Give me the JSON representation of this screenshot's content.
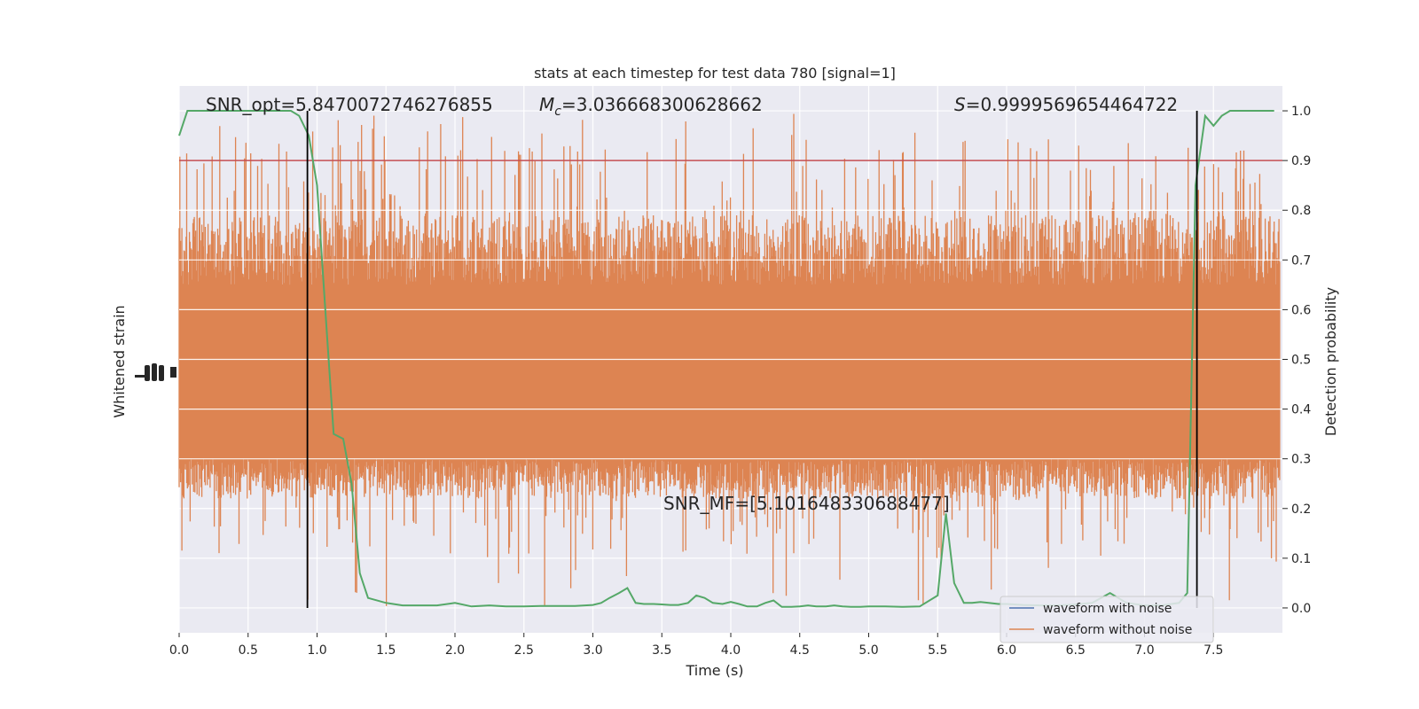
{
  "chart_data": {
    "type": "line",
    "title": "stats at each timestep for test data 780 [signal=1]",
    "xlabel": "Time (s)",
    "ylabel_left": "Whitened strain",
    "ylabel_right": "Detection probability",
    "xlim": [
      0,
      8
    ],
    "ylim_right": [
      -0.05,
      1.05
    ],
    "x_ticks": [
      0.0,
      0.5,
      1.0,
      1.5,
      2.0,
      2.5,
      3.0,
      3.5,
      4.0,
      4.5,
      5.0,
      5.5,
      6.0,
      6.5,
      7.0,
      7.5
    ],
    "x_tick_labels": [
      "0.0",
      "0.5",
      "1.0",
      "1.5",
      "2.0",
      "2.5",
      "3.0",
      "3.5",
      "4.0",
      "4.5",
      "5.0",
      "5.5",
      "6.0",
      "6.5",
      "7.0",
      "7.5"
    ],
    "y_right_ticks": [
      0.0,
      0.1,
      0.2,
      0.3,
      0.4,
      0.5,
      0.6,
      0.7,
      0.8,
      0.9,
      1.0
    ],
    "y_right_tick_labels": [
      "0.0",
      "0.1",
      "0.2",
      "0.3",
      "0.4",
      "0.5",
      "0.6",
      "0.7",
      "0.8",
      "0.9",
      "1.0"
    ],
    "grid": true,
    "legend_placement": "lower-right",
    "annotations": {
      "snr_opt": "SNR_opt=5.8470072746276855",
      "mc_prefix": "M",
      "mc_sub": "c",
      "mc_value": "=3.036668300628662",
      "s_prefix": "S",
      "s_value": "=0.9999569654464722",
      "snr_mf": "SNR_MF=[5.101648330688477]"
    },
    "threshold": 0.9,
    "vertical_lines_x": [
      0.93,
      7.38
    ],
    "strain_band": {
      "name": "waveform without noise",
      "core_low": 0.3,
      "core_high": 0.65,
      "spike_low_min": 0.0,
      "spike_high_max": 1.0
    },
    "series": [
      {
        "name": "waveform with noise",
        "color": "#4c72b0"
      },
      {
        "name": "waveform without noise",
        "color": "#dd8452"
      },
      {
        "color": "#55a868",
        "x": [
          0.0,
          0.06,
          0.12,
          0.19,
          0.25,
          0.31,
          0.37,
          0.44,
          0.5,
          0.56,
          0.62,
          0.69,
          0.75,
          0.81,
          0.87,
          0.94,
          1.0,
          1.06,
          1.12,
          1.19,
          1.25,
          1.31,
          1.37,
          1.5,
          1.62,
          1.75,
          1.87,
          2.0,
          2.12,
          2.25,
          2.37,
          2.5,
          2.62,
          2.75,
          2.87,
          3.0,
          3.06,
          3.12,
          3.19,
          3.25,
          3.31,
          3.37,
          3.44,
          3.5,
          3.56,
          3.62,
          3.69,
          3.75,
          3.81,
          3.87,
          3.94,
          4.0,
          4.06,
          4.12,
          4.19,
          4.25,
          4.31,
          4.37,
          4.44,
          4.5,
          4.56,
          4.62,
          4.69,
          4.75,
          4.81,
          4.87,
          4.94,
          5.0,
          5.12,
          5.25,
          5.37,
          5.5,
          5.56,
          5.62,
          5.69,
          5.75,
          5.81,
          5.87,
          5.94,
          6.0,
          6.12,
          6.25,
          6.37,
          6.5,
          6.62,
          6.75,
          6.87,
          7.0,
          7.12,
          7.25,
          7.31,
          7.37,
          7.44,
          7.5,
          7.56,
          7.62,
          7.69,
          7.75,
          7.87,
          7.94
        ],
        "y": [
          0.95,
          1.0,
          1.0,
          1.0,
          1.0,
          1.0,
          1.0,
          1.0,
          1.0,
          1.0,
          1.0,
          1.0,
          1.0,
          1.0,
          0.99,
          0.95,
          0.85,
          0.6,
          0.35,
          0.34,
          0.25,
          0.07,
          0.02,
          0.01,
          0.005,
          0.005,
          0.005,
          0.01,
          0.003,
          0.005,
          0.003,
          0.003,
          0.004,
          0.004,
          0.004,
          0.006,
          0.01,
          0.02,
          0.03,
          0.04,
          0.01,
          0.008,
          0.008,
          0.007,
          0.006,
          0.006,
          0.01,
          0.025,
          0.02,
          0.01,
          0.008,
          0.012,
          0.008,
          0.003,
          0.003,
          0.01,
          0.015,
          0.002,
          0.002,
          0.003,
          0.005,
          0.003,
          0.003,
          0.005,
          0.003,
          0.002,
          0.002,
          0.003,
          0.003,
          0.002,
          0.003,
          0.025,
          0.19,
          0.05,
          0.01,
          0.01,
          0.012,
          0.01,
          0.008,
          0.008,
          0.006,
          0.005,
          0.005,
          0.007,
          0.01,
          0.03,
          0.01,
          0.005,
          0.005,
          0.01,
          0.03,
          0.85,
          0.99,
          0.97,
          0.99,
          1.0,
          1.0,
          1.0,
          1.0,
          1.0
        ]
      }
    ]
  }
}
